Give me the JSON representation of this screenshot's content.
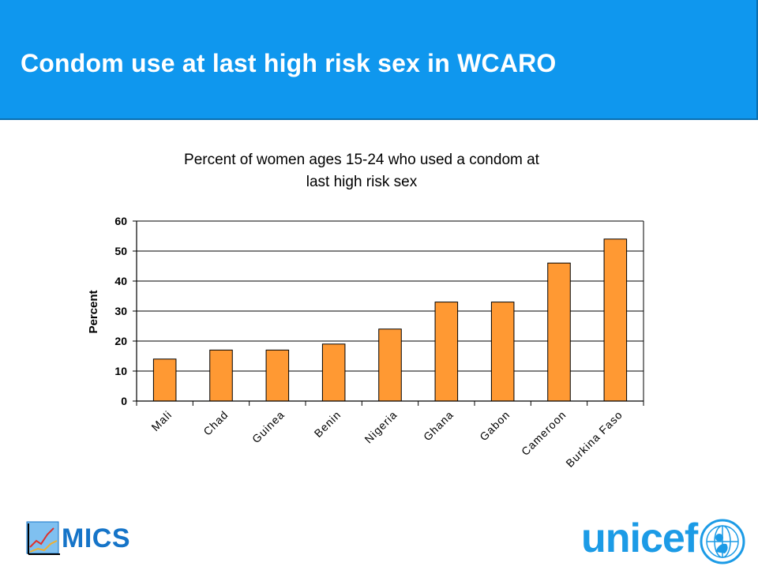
{
  "slide": {
    "title": "Condom use at last high risk sex in WCARO"
  },
  "chart_data": {
    "type": "bar",
    "title_line1": "Percent of women ages 15-24 who used a condom at",
    "title_line2": "last high risk sex",
    "ylabel": "Percent",
    "xlabel": "",
    "ylim": [
      0,
      60
    ],
    "yticks": [
      0,
      10,
      20,
      30,
      40,
      50,
      60
    ],
    "grid": true,
    "categories": [
      "Mali",
      "Chad",
      "Guinea",
      "Benin",
      "Nigeria",
      "Ghana",
      "Gabon",
      "Cameroon",
      "Burkina Faso"
    ],
    "values": [
      14,
      17,
      17,
      19,
      24,
      33,
      33,
      46,
      54
    ],
    "bar_color": "#ff9933",
    "bar_edge_color": "#000000"
  },
  "logos": {
    "mics": "MICS",
    "unicef": "unicef"
  }
}
